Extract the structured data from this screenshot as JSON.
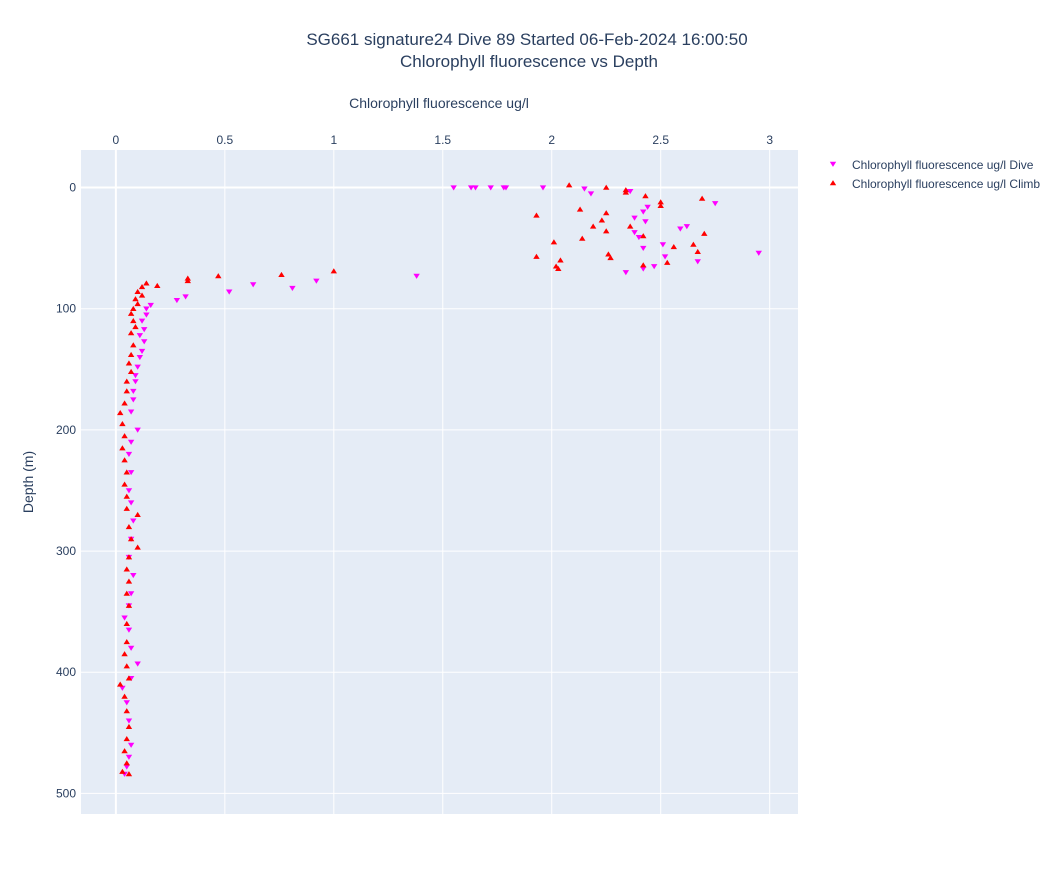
{
  "chart_data": {
    "type": "scatter",
    "title": "SG661 signature24 Dive 89 Started 06-Feb-2024 16:00:50",
    "subtitle": "Chlorophyll fluorescence vs Depth",
    "xlabel": "Chlorophyll fluorescence ug/l",
    "ylabel": "Depth (m)",
    "x_axis_position": "top",
    "y_reversed": true,
    "xlim": [
      -0.16,
      3.13
    ],
    "ylim": [
      -31,
      517
    ],
    "x_ticks": [
      0,
      0.5,
      1,
      1.5,
      2,
      2.5,
      3
    ],
    "x_tick_labels": [
      "0",
      "0.5",
      "1",
      "1.5",
      "2",
      "2.5",
      "3"
    ],
    "y_ticks": [
      0,
      100,
      200,
      300,
      400,
      500
    ],
    "y_tick_labels": [
      "0",
      "100",
      "200",
      "300",
      "400",
      "500"
    ],
    "grid": true,
    "legend_position": "top-right",
    "colors": {
      "plot_bg": "#e5ecf6",
      "grid": "#ffffff",
      "dive": "#ff00ff",
      "climb": "#ff0000"
    },
    "series": [
      {
        "name": "Chlorophyll fluorescence ug/l Dive",
        "marker": "triangle-down",
        "color": "#ff00ff",
        "points": [
          [
            1.55,
            0
          ],
          [
            1.63,
            0
          ],
          [
            1.65,
            0
          ],
          [
            1.72,
            0
          ],
          [
            1.78,
            0
          ],
          [
            1.79,
            0
          ],
          [
            1.96,
            0
          ],
          [
            2.15,
            1
          ],
          [
            2.18,
            5
          ],
          [
            2.36,
            3
          ],
          [
            2.44,
            16
          ],
          [
            2.75,
            13
          ],
          [
            2.42,
            20
          ],
          [
            2.38,
            25
          ],
          [
            2.43,
            28
          ],
          [
            2.62,
            32
          ],
          [
            2.59,
            34
          ],
          [
            2.38,
            37
          ],
          [
            2.4,
            41
          ],
          [
            2.42,
            50
          ],
          [
            2.51,
            47
          ],
          [
            2.52,
            57
          ],
          [
            2.95,
            54
          ],
          [
            2.67,
            61
          ],
          [
            2.47,
            65
          ],
          [
            2.42,
            67
          ],
          [
            2.34,
            70
          ],
          [
            1.38,
            73
          ],
          [
            0.92,
            77
          ],
          [
            0.63,
            80
          ],
          [
            0.81,
            83
          ],
          [
            0.52,
            86
          ],
          [
            0.32,
            90
          ],
          [
            0.28,
            93
          ],
          [
            0.16,
            97
          ],
          [
            0.14,
            100
          ],
          [
            0.14,
            105
          ],
          [
            0.12,
            110
          ],
          [
            0.13,
            117
          ],
          [
            0.11,
            122
          ],
          [
            0.13,
            127
          ],
          [
            0.12,
            135
          ],
          [
            0.11,
            140
          ],
          [
            0.1,
            148
          ],
          [
            0.09,
            155
          ],
          [
            0.09,
            160
          ],
          [
            0.08,
            168
          ],
          [
            0.08,
            175
          ],
          [
            0.07,
            185
          ],
          [
            0.1,
            200
          ],
          [
            0.07,
            210
          ],
          [
            0.06,
            220
          ],
          [
            0.07,
            235
          ],
          [
            0.06,
            250
          ],
          [
            0.07,
            260
          ],
          [
            0.08,
            275
          ],
          [
            0.07,
            290
          ],
          [
            0.06,
            305
          ],
          [
            0.08,
            320
          ],
          [
            0.07,
            335
          ],
          [
            0.06,
            345
          ],
          [
            0.04,
            355
          ],
          [
            0.06,
            365
          ],
          [
            0.07,
            380
          ],
          [
            0.1,
            393
          ],
          [
            0.07,
            405
          ],
          [
            0.03,
            413
          ],
          [
            0.05,
            425
          ],
          [
            0.06,
            440
          ],
          [
            0.07,
            460
          ],
          [
            0.06,
            470
          ],
          [
            0.05,
            478
          ],
          [
            0.04,
            484
          ]
        ]
      },
      {
        "name": "Chlorophyll fluorescence ug/l Climb",
        "marker": "triangle-up",
        "color": "#ff0000",
        "points": [
          [
            2.08,
            -2
          ],
          [
            2.25,
            0
          ],
          [
            2.34,
            2
          ],
          [
            2.34,
            4
          ],
          [
            2.43,
            7
          ],
          [
            2.5,
            12
          ],
          [
            2.5,
            15
          ],
          [
            2.69,
            9
          ],
          [
            2.13,
            18
          ],
          [
            2.25,
            21
          ],
          [
            2.23,
            27
          ],
          [
            1.93,
            23
          ],
          [
            2.36,
            32
          ],
          [
            2.19,
            32
          ],
          [
            2.25,
            36
          ],
          [
            2.7,
            38
          ],
          [
            2.14,
            42
          ],
          [
            2.01,
            45
          ],
          [
            2.42,
            40
          ],
          [
            2.65,
            47
          ],
          [
            2.56,
            49
          ],
          [
            2.67,
            53
          ],
          [
            1.93,
            57
          ],
          [
            2.26,
            55
          ],
          [
            2.27,
            58
          ],
          [
            2.04,
            60
          ],
          [
            2.02,
            65
          ],
          [
            2.03,
            67
          ],
          [
            2.53,
            62
          ],
          [
            2.42,
            64
          ],
          [
            1.0,
            69
          ],
          [
            0.76,
            72
          ],
          [
            0.47,
            73
          ],
          [
            0.33,
            75
          ],
          [
            0.33,
            77
          ],
          [
            0.19,
            81
          ],
          [
            0.14,
            79
          ],
          [
            0.12,
            82
          ],
          [
            0.1,
            86
          ],
          [
            0.12,
            89
          ],
          [
            0.09,
            92
          ],
          [
            0.1,
            96
          ],
          [
            0.08,
            100
          ],
          [
            0.07,
            104
          ],
          [
            0.08,
            110
          ],
          [
            0.09,
            115
          ],
          [
            0.07,
            120
          ],
          [
            0.08,
            130
          ],
          [
            0.07,
            138
          ],
          [
            0.06,
            145
          ],
          [
            0.07,
            152
          ],
          [
            0.05,
            160
          ],
          [
            0.05,
            168
          ],
          [
            0.04,
            178
          ],
          [
            0.02,
            186
          ],
          [
            0.03,
            195
          ],
          [
            0.04,
            205
          ],
          [
            0.03,
            215
          ],
          [
            0.04,
            225
          ],
          [
            0.05,
            235
          ],
          [
            0.04,
            245
          ],
          [
            0.05,
            255
          ],
          [
            0.05,
            265
          ],
          [
            0.1,
            270
          ],
          [
            0.06,
            280
          ],
          [
            0.07,
            290
          ],
          [
            0.1,
            297
          ],
          [
            0.06,
            305
          ],
          [
            0.05,
            315
          ],
          [
            0.06,
            325
          ],
          [
            0.05,
            335
          ],
          [
            0.06,
            345
          ],
          [
            0.05,
            360
          ],
          [
            0.05,
            375
          ],
          [
            0.04,
            385
          ],
          [
            0.05,
            395
          ],
          [
            0.06,
            405
          ],
          [
            0.02,
            410
          ],
          [
            0.04,
            420
          ],
          [
            0.05,
            432
          ],
          [
            0.06,
            445
          ],
          [
            0.05,
            455
          ],
          [
            0.04,
            465
          ],
          [
            0.05,
            475
          ],
          [
            0.03,
            482
          ],
          [
            0.06,
            484
          ]
        ]
      }
    ]
  }
}
